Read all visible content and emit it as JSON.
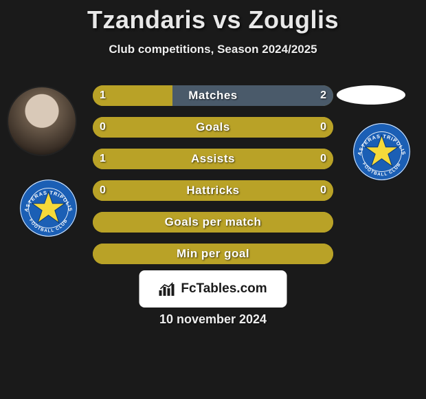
{
  "title": "Tzandaris vs Zouglis",
  "subtitle": "Club competitions, Season 2024/2025",
  "site_name": "FcTables.com",
  "date": "10 november 2024",
  "colors": {
    "bar_fill": "#b9a227",
    "bar_bg_alt": "#4a5a6a",
    "background": "#1a1a1a"
  },
  "club_badge": {
    "outer_ring": "#1b5fb5",
    "inner_bg": "#1b5fb5",
    "star_fill": "#f5d93a",
    "text_top": "ASTERAS TRIPOLIS",
    "text_bottom": "FOOTBALL CLUB",
    "ring_text_color": "#ffffff"
  },
  "stats": [
    {
      "label": "Matches",
      "left_value": "1",
      "right_value": "2",
      "left_pct": 33,
      "right_pct": 67,
      "left_color": "#b9a227",
      "right_color": "#4a5a6a"
    },
    {
      "label": "Goals",
      "left_value": "0",
      "right_value": "0",
      "left_pct": 100,
      "right_pct": 0,
      "left_color": "#b9a227",
      "right_color": "#b9a227"
    },
    {
      "label": "Assists",
      "left_value": "1",
      "right_value": "0",
      "left_pct": 100,
      "right_pct": 0,
      "left_color": "#b9a227",
      "right_color": "#b9a227"
    },
    {
      "label": "Hattricks",
      "left_value": "0",
      "right_value": "0",
      "left_pct": 100,
      "right_pct": 0,
      "left_color": "#b9a227",
      "right_color": "#b9a227"
    },
    {
      "label": "Goals per match",
      "left_value": "",
      "right_value": "",
      "left_pct": 100,
      "right_pct": 0,
      "left_color": "#b9a227",
      "right_color": "#b9a227"
    },
    {
      "label": "Min per goal",
      "left_value": "",
      "right_value": "",
      "left_pct": 100,
      "right_pct": 0,
      "left_color": "#b9a227",
      "right_color": "#b9a227"
    }
  ]
}
